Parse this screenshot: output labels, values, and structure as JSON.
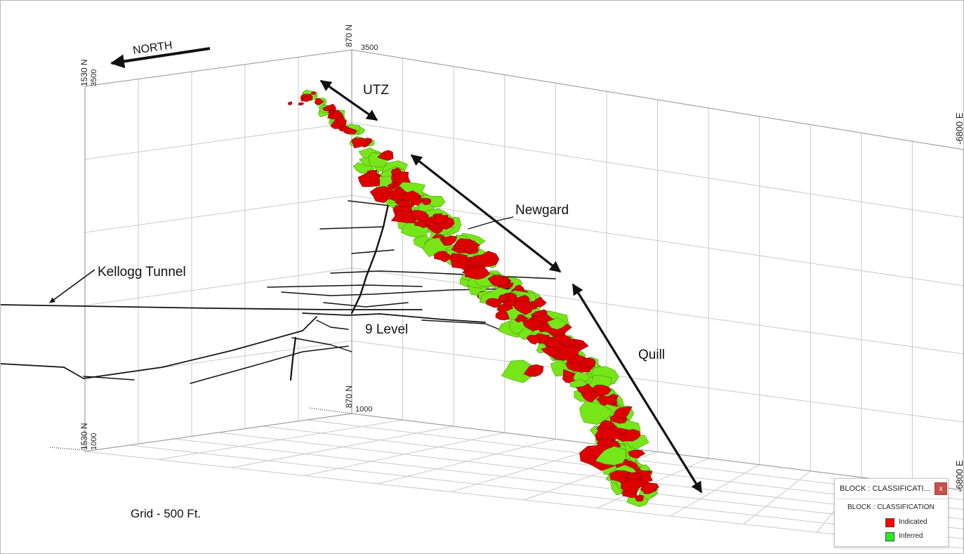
{
  "colors": {
    "indicated": "#dd0000",
    "inferred": "#77e619",
    "grid": "#c9c9c9",
    "workings": "#111111",
    "arrow": "#111111"
  },
  "annotations": {
    "north": "NORTH",
    "utz": "UTZ",
    "newgard": "Newgard",
    "kellogg": "Kellogg Tunnel",
    "nine_level": "9 Level",
    "quill": "Quill",
    "grid": "Grid - 500 Ft."
  },
  "axis_labels": {
    "top_left_coord": "1530 N",
    "top_left_elev": "3500",
    "bottom_left_coord": "1530 N",
    "bottom_left_elev": "1000",
    "top_mid_coord": "870 N",
    "top_mid_elev": "3500",
    "bottom_mid_coord": "870 N",
    "bottom_mid_elev": "1000",
    "right_top_coord": "-6800 E",
    "right_bottom_coord": "-6800 E"
  },
  "legend": {
    "title": "BLOCK : CLASSIFICATI...",
    "close": "x",
    "subtitle": "BLOCK : CLASSIFICATION",
    "items": [
      {
        "label": "Indicated",
        "color": "#ff0000"
      },
      {
        "label": "Inferred",
        "color": "#22ee22"
      }
    ]
  }
}
